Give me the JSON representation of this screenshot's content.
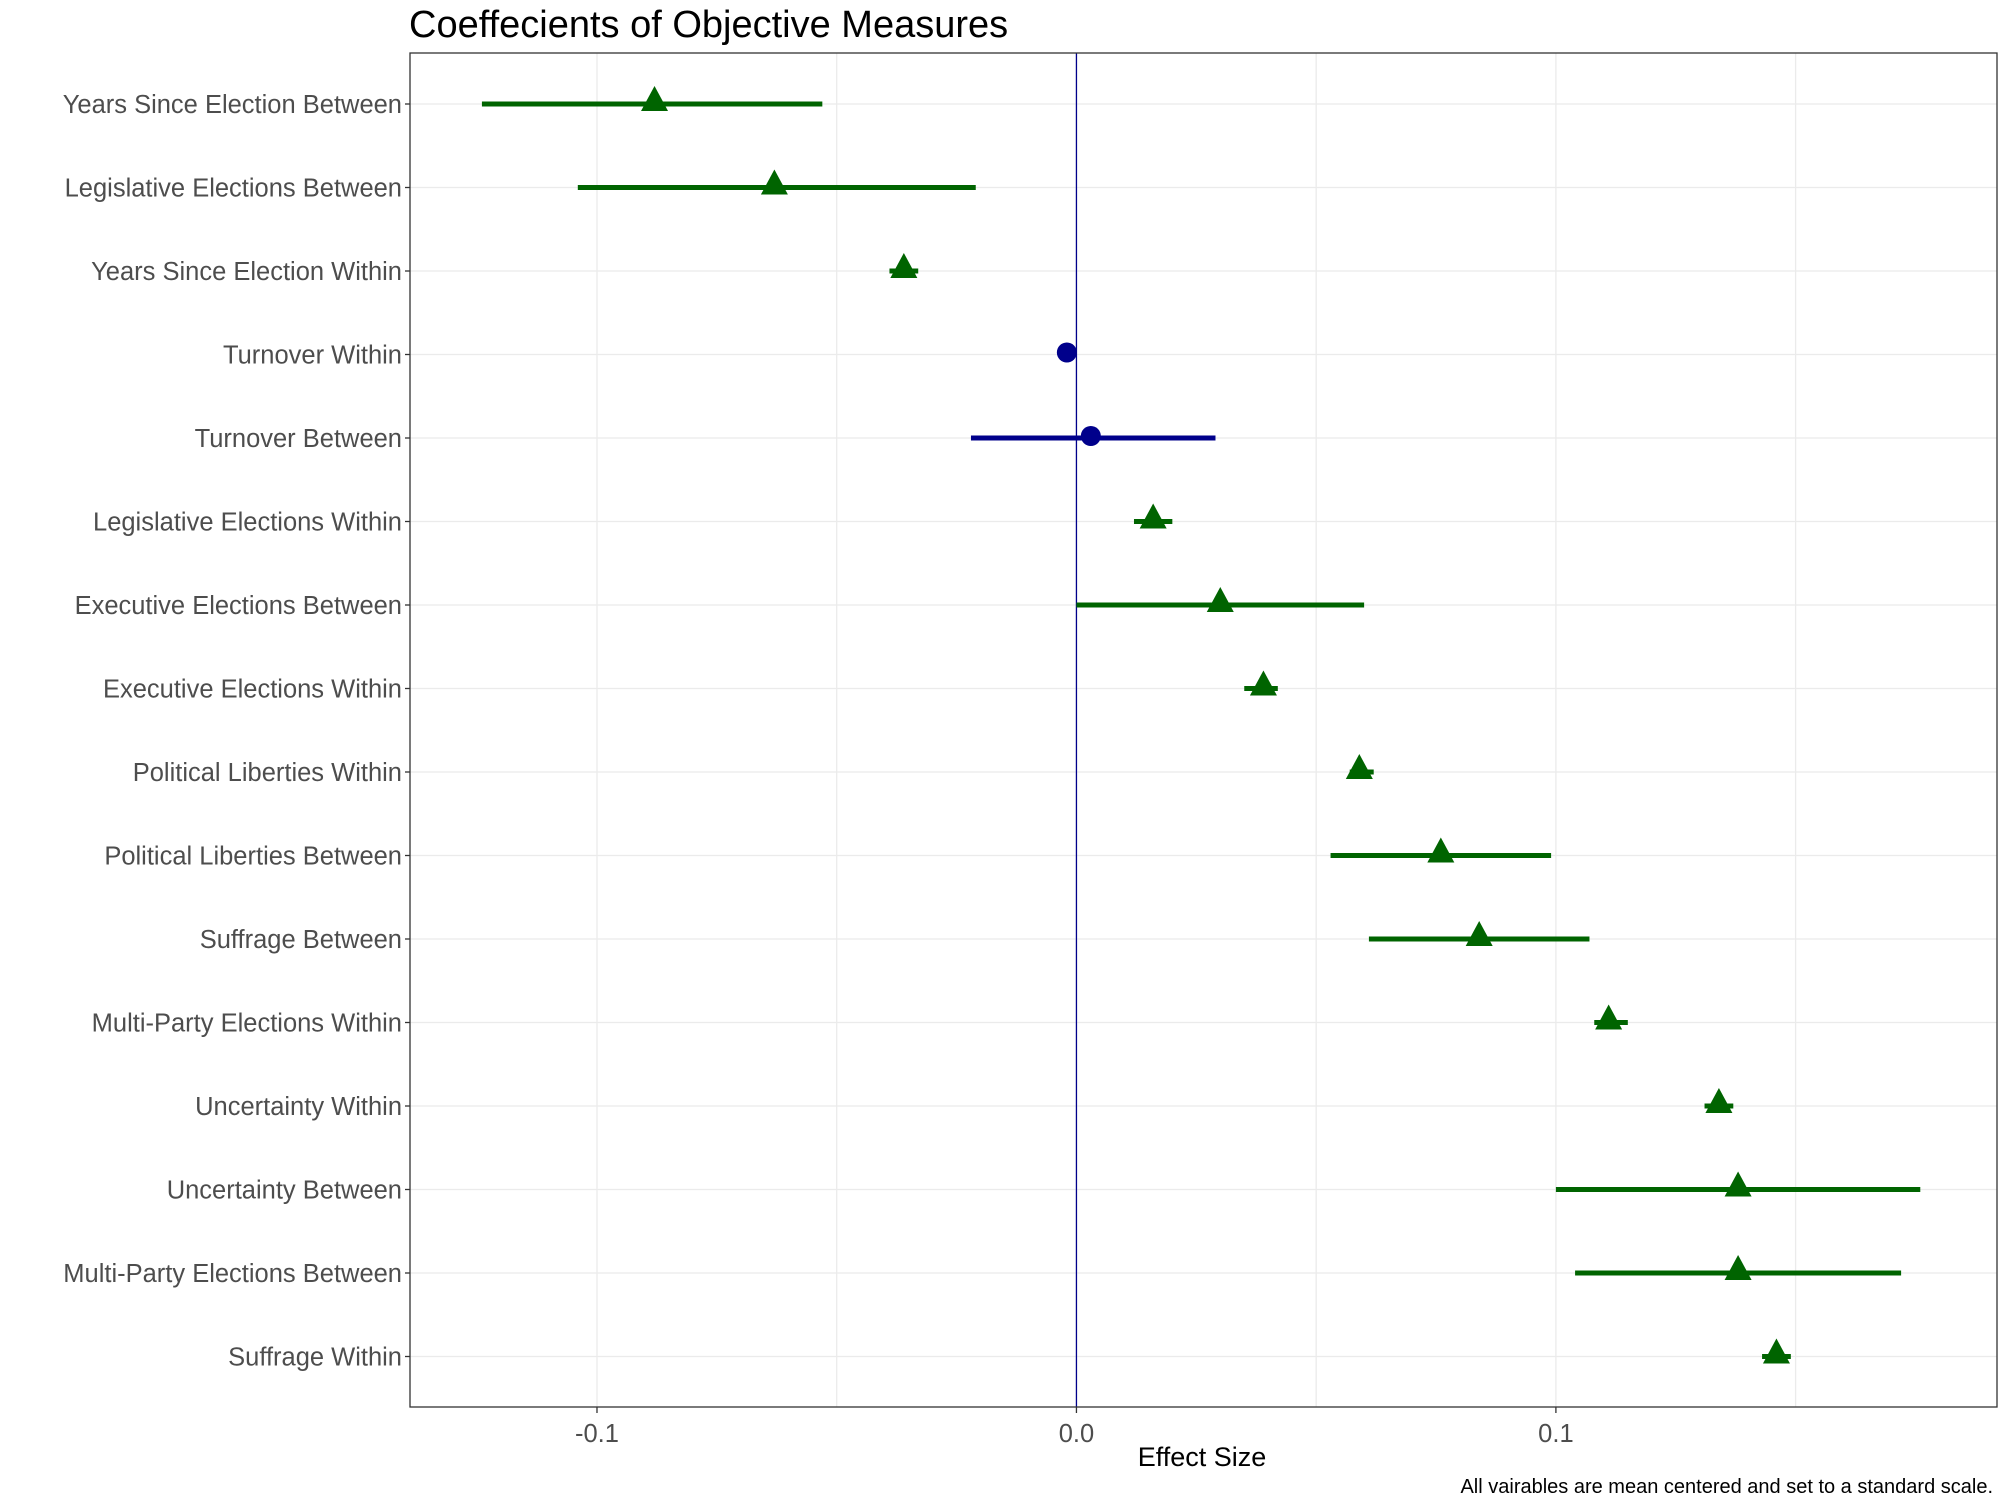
{
  "chart_data": {
    "type": "scatter",
    "title": "Coeffecients of Objective Measures",
    "xlabel": "Effect Size",
    "ylabel": "",
    "caption": "All vairables are mean centered and set to a standard scale.",
    "xlim": [
      -0.139,
      0.192
    ],
    "xticks": [
      -0.1,
      0.0,
      0.1
    ],
    "xtick_labels": [
      "-0.1",
      "0.0",
      "0.1"
    ],
    "grid": true,
    "reference_line": {
      "x": 0,
      "color": "#00008b"
    },
    "colors": {
      "significant": "#006400",
      "not_significant": "#00008b"
    },
    "points": [
      {
        "label": "Years Since Election Between",
        "estimate": -0.088,
        "lower": -0.124,
        "upper": -0.053,
        "shape": "triangle",
        "color": "#006400"
      },
      {
        "label": "Legislative Elections Between",
        "estimate": -0.063,
        "lower": -0.104,
        "upper": -0.021,
        "shape": "triangle",
        "color": "#006400"
      },
      {
        "label": "Years Since Election Within",
        "estimate": -0.036,
        "lower": -0.039,
        "upper": -0.033,
        "shape": "triangle",
        "color": "#006400"
      },
      {
        "label": "Turnover Within",
        "estimate": -0.002,
        "lower": -0.003,
        "upper": -0.001,
        "shape": "circle",
        "color": "#00008b"
      },
      {
        "label": "Turnover Between",
        "estimate": 0.003,
        "lower": -0.022,
        "upper": 0.029,
        "shape": "circle",
        "color": "#00008b"
      },
      {
        "label": "Legislative Elections Within",
        "estimate": 0.016,
        "lower": 0.012,
        "upper": 0.02,
        "shape": "triangle",
        "color": "#006400"
      },
      {
        "label": "Executive Elections Between",
        "estimate": 0.03,
        "lower": 0.0,
        "upper": 0.06,
        "shape": "triangle",
        "color": "#006400"
      },
      {
        "label": "Executive Elections Within",
        "estimate": 0.039,
        "lower": 0.035,
        "upper": 0.042,
        "shape": "triangle",
        "color": "#006400"
      },
      {
        "label": "Political Liberties Within",
        "estimate": 0.059,
        "lower": 0.057,
        "upper": 0.062,
        "shape": "triangle",
        "color": "#006400"
      },
      {
        "label": "Political Liberties Between",
        "estimate": 0.076,
        "lower": 0.053,
        "upper": 0.099,
        "shape": "triangle",
        "color": "#006400"
      },
      {
        "label": "Suffrage Between",
        "estimate": 0.084,
        "lower": 0.061,
        "upper": 0.107,
        "shape": "triangle",
        "color": "#006400"
      },
      {
        "label": "Multi-Party Elections Within",
        "estimate": 0.111,
        "lower": 0.108,
        "upper": 0.115,
        "shape": "triangle",
        "color": "#006400"
      },
      {
        "label": "Uncertainty Within",
        "estimate": 0.134,
        "lower": 0.131,
        "upper": 0.137,
        "shape": "triangle",
        "color": "#006400"
      },
      {
        "label": "Uncertainty Between",
        "estimate": 0.138,
        "lower": 0.1,
        "upper": 0.176,
        "shape": "triangle",
        "color": "#006400"
      },
      {
        "label": "Multi-Party Elections Between",
        "estimate": 0.138,
        "lower": 0.104,
        "upper": 0.172,
        "shape": "triangle",
        "color": "#006400"
      },
      {
        "label": "Suffrage Within",
        "estimate": 0.146,
        "lower": 0.143,
        "upper": 0.149,
        "shape": "triangle",
        "color": "#006400"
      }
    ]
  }
}
